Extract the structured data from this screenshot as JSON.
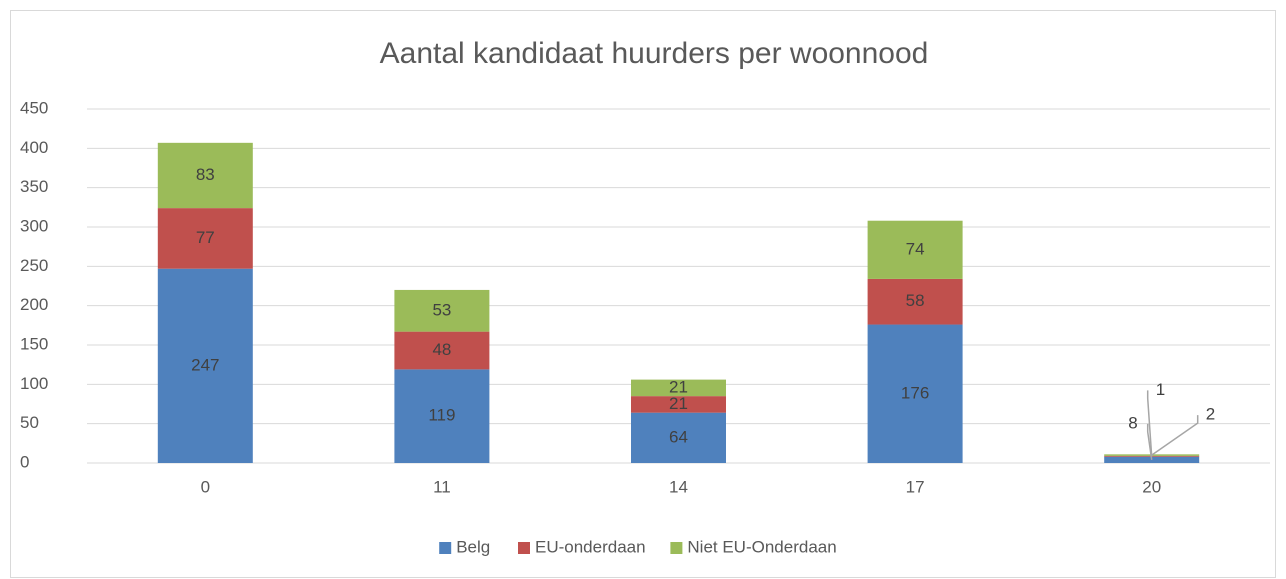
{
  "chart_data": {
    "type": "bar",
    "stacked": true,
    "title": "Aantal kandidaat huurders per woonnood",
    "categories": [
      "0",
      "11",
      "14",
      "17",
      "20"
    ],
    "series": [
      {
        "name": "Belg",
        "color": "#4f81bd",
        "values": [
          247,
          119,
          64,
          176,
          8
        ]
      },
      {
        "name": "EU-onderdaan",
        "color": "#c0504d",
        "values": [
          77,
          48,
          21,
          58,
          1
        ]
      },
      {
        "name": "Niet EU-Onderdaan",
        "color": "#9bbb59",
        "values": [
          83,
          53,
          21,
          74,
          2
        ]
      }
    ],
    "ylim": [
      0,
      450
    ],
    "yticks": [
      0,
      50,
      100,
      150,
      200,
      250,
      300,
      350,
      400,
      450
    ],
    "grid": true,
    "legend": "bottom"
  }
}
